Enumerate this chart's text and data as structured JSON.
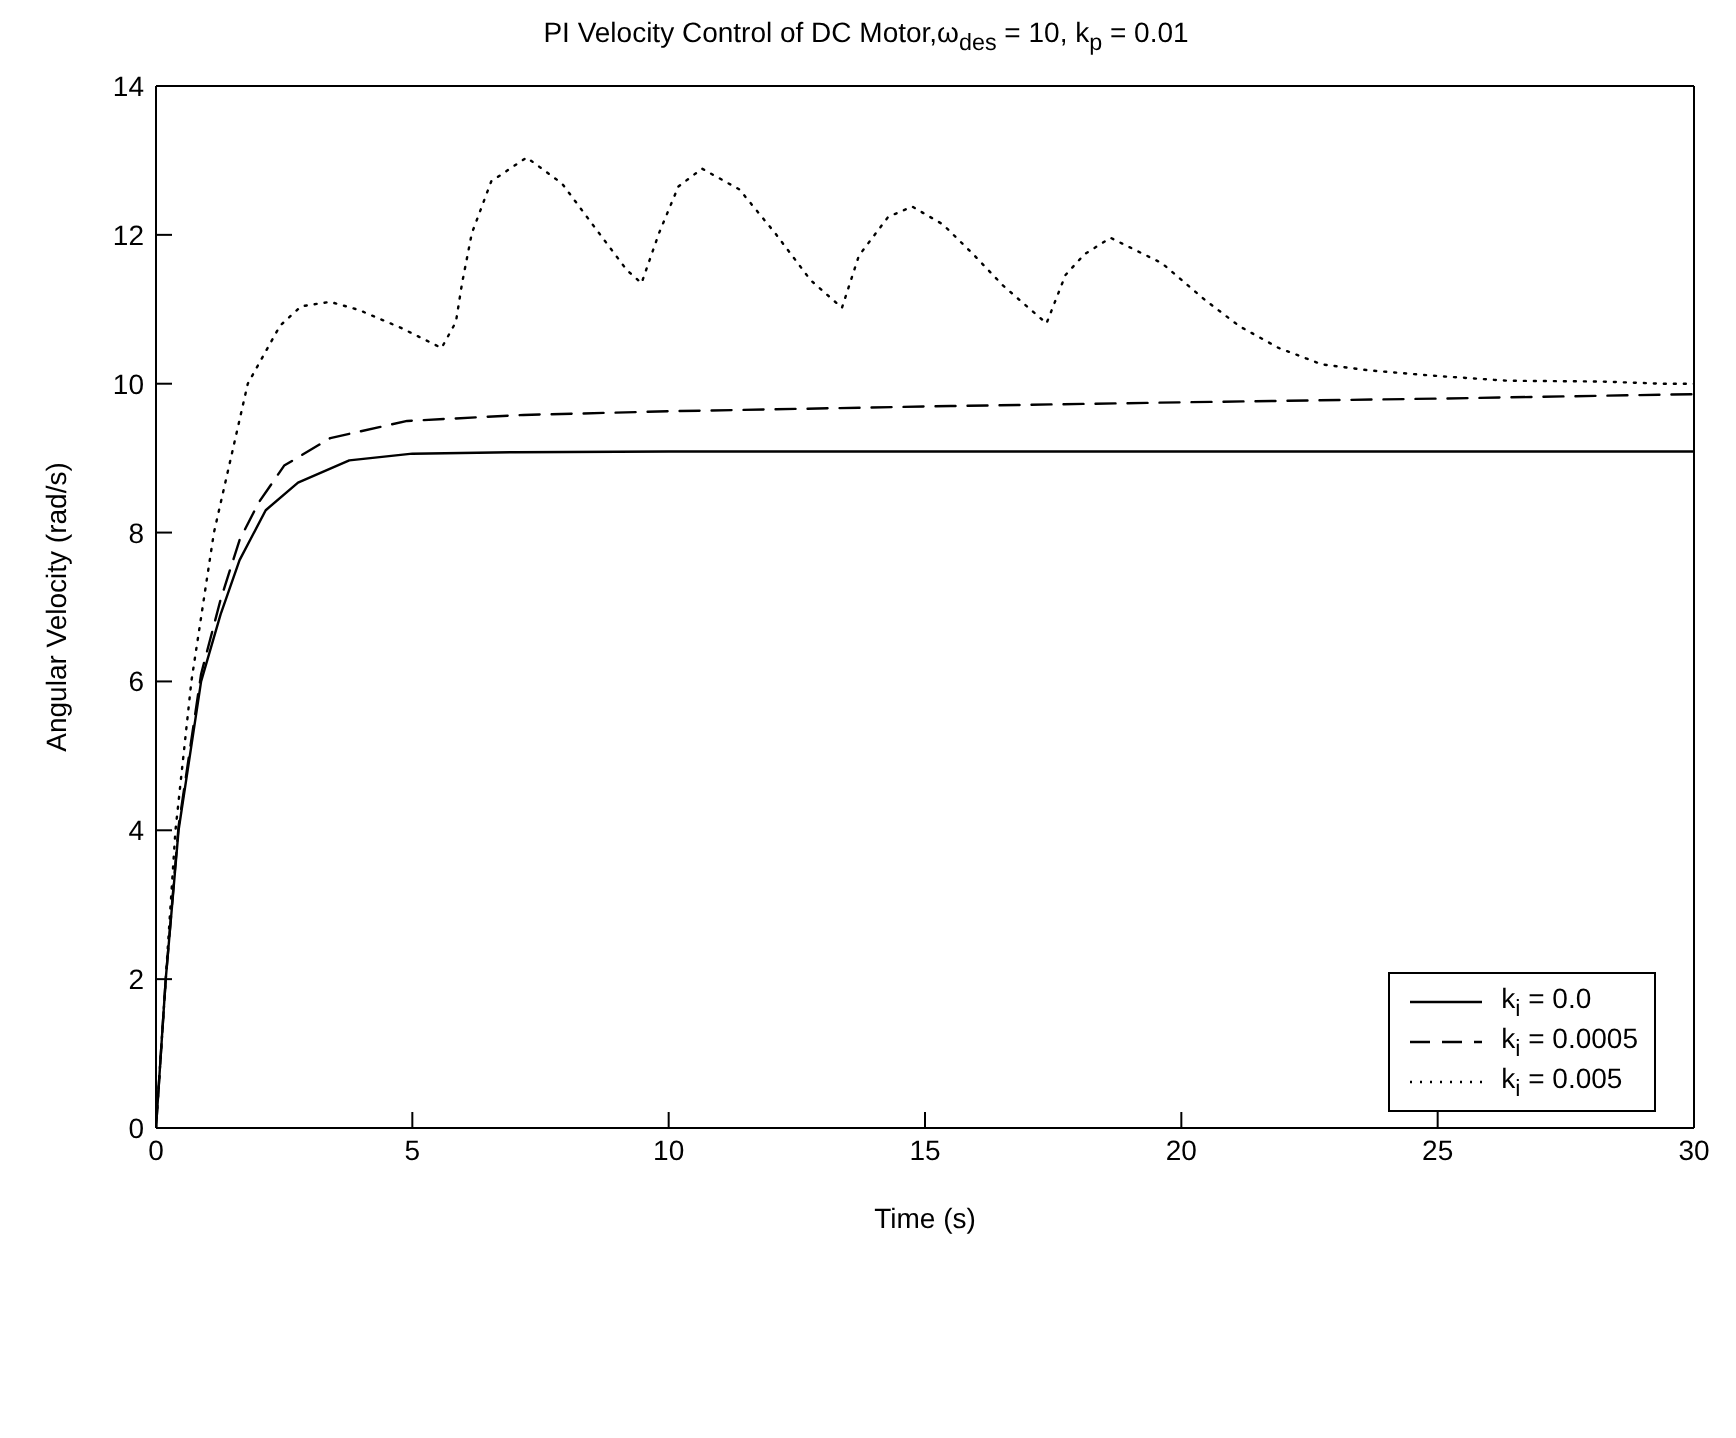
{
  "chart_data": {
    "type": "line",
    "title": "PI Velocity Control of DC Motor,ω$_{des}$ = 10, k$_{p}$ = 0.01",
    "xlabel": "Time (s)",
    "ylabel": "Angular Velocity (rad/s)",
    "xlim": [
      0,
      30
    ],
    "xticks": [
      0,
      5,
      10,
      15,
      20,
      25,
      30
    ],
    "ylim": [
      0,
      14
    ],
    "yticks": [
      0,
      2,
      4,
      6,
      8,
      10,
      12,
      14
    ],
    "grid": false,
    "legend": "bottom right",
    "marker": "none",
    "series": [
      {
        "name": "k$_{i}$ = 0.0",
        "color": "#000000",
        "line_style": "solid",
        "x": [
          0,
          0.19,
          0.44,
          0.88,
          1.26,
          1.63,
          2.14,
          2.77,
          3.77,
          5,
          7,
          10,
          15,
          20,
          25,
          30
        ],
        "values": [
          0,
          2,
          4,
          6,
          6.9,
          7.63,
          8.3,
          8.67,
          8.97,
          9.06,
          9.08,
          9.09,
          9.09,
          9.09,
          9.09,
          9.09
        ]
      },
      {
        "name": "k$_{i}$ = 0.0005",
        "color": "#000000",
        "line_style": "dashed",
        "x": [
          0,
          0.19,
          0.44,
          0.88,
          1.26,
          1.63,
          2.0,
          2.5,
          3.4,
          4.9,
          7.17,
          10,
          15.5,
          20,
          25,
          30
        ],
        "values": [
          0,
          2,
          4.05,
          6.1,
          7.1,
          7.9,
          8.4,
          8.9,
          9.27,
          9.5,
          9.58,
          9.63,
          9.7,
          9.75,
          9.8,
          9.86
        ]
      },
      {
        "name": "k$_{i}$ = 0.005",
        "color": "#000000",
        "line_style": "dotted",
        "x": [
          0,
          0.38,
          0.69,
          1.13,
          1.79,
          2.42,
          2.83,
          3.4,
          3.96,
          4.78,
          5.57,
          5.85,
          5.97,
          6.16,
          6.54,
          7.23,
          7.92,
          8.58,
          9.18,
          9.47,
          9.81,
          10.19,
          10.65,
          11.38,
          12.08,
          12.77,
          13.38,
          13.71,
          14.28,
          14.75,
          15.35,
          15.94,
          16.52,
          17.37,
          17.74,
          18.11,
          18.62,
          19.62,
          20.47,
          21.14,
          21.9,
          22.74,
          23.65,
          24.86,
          26.36,
          28.17,
          29.37,
          30
        ],
        "values": [
          0,
          4,
          6,
          8,
          10,
          10.78,
          11.04,
          11.1,
          10.99,
          10.75,
          10.48,
          10.83,
          11.35,
          12.02,
          12.72,
          13.04,
          12.69,
          12.08,
          11.53,
          11.35,
          12.02,
          12.65,
          12.89,
          12.61,
          12.02,
          11.39,
          11.02,
          11.72,
          12.24,
          12.38,
          12.14,
          11.74,
          11.32,
          10.81,
          11.46,
          11.74,
          11.96,
          11.62,
          11.12,
          10.77,
          10.48,
          10.26,
          10.18,
          10.11,
          10.04,
          10.03,
          10.0,
          10.0
        ]
      }
    ]
  }
}
